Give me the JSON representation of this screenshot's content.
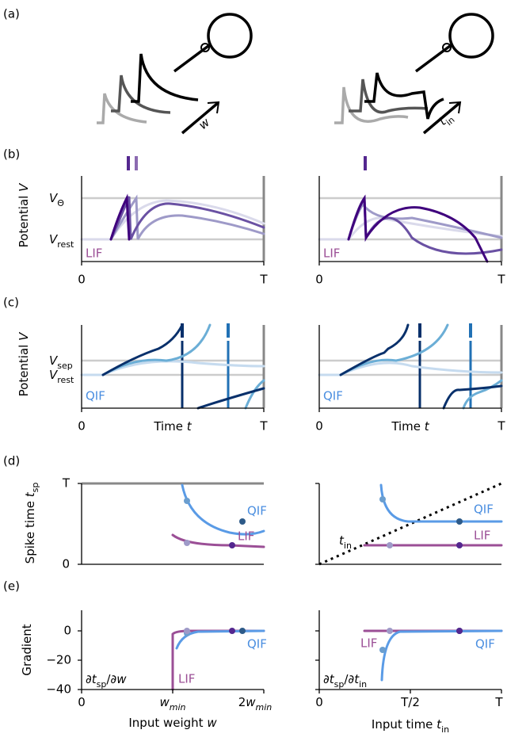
{
  "a": {
    "label": "(a)",
    "left_input": [
      {
        "text": "w",
        "style": "italic"
      }
    ],
    "right_input": [
      {
        "text": "t",
        "style": "italic"
      },
      {
        "text": "in",
        "style": "sub"
      }
    ]
  },
  "b": {
    "label": "(b)",
    "ylabel": [
      {
        "text": "Potential "
      },
      {
        "text": "V",
        "style": "italic"
      }
    ],
    "yticks": [
      [
        {
          "text": "V",
          "style": "italic"
        },
        {
          "text": "Θ",
          "style": "sub"
        }
      ],
      [
        {
          "text": "V",
          "style": "italic"
        },
        {
          "text": "rest",
          "style": "sub"
        }
      ]
    ],
    "model": "LIF",
    "xticks": [
      "0",
      "T"
    ]
  },
  "c": {
    "label": "(c)",
    "ylabel": [
      {
        "text": "Potential "
      },
      {
        "text": "V",
        "style": "italic"
      }
    ],
    "yticks": [
      [
        {
          "text": "V",
          "style": "italic"
        },
        {
          "text": "sep",
          "style": "sub"
        }
      ],
      [
        {
          "text": "V",
          "style": "italic"
        },
        {
          "text": "rest",
          "style": "sub"
        }
      ]
    ],
    "model": "QIF",
    "xticks": [
      "0",
      "T"
    ],
    "xlabel": [
      {
        "text": "Time "
      },
      {
        "text": "t",
        "style": "italic"
      }
    ]
  },
  "d": {
    "label": "(d)",
    "ylabel": [
      {
        "text": "Spike time "
      },
      {
        "text": "t",
        "style": "italic"
      },
      {
        "text": "sp",
        "style": "sub"
      }
    ],
    "yticks": [
      "T",
      "0"
    ],
    "curve_labels": [
      "QIF",
      "LIF"
    ],
    "diagonal_label": [
      {
        "text": "t",
        "style": "italic"
      },
      {
        "text": "in",
        "style": "sub"
      }
    ]
  },
  "e": {
    "label": "(e)",
    "ylabel": [
      {
        "text": "Gradient"
      }
    ],
    "yticks": [
      "0",
      "−20",
      "−40"
    ],
    "curve_labels": [
      "QIF",
      "LIF"
    ],
    "left": {
      "derivative": [
        {
          "text": "∂"
        },
        {
          "text": "t",
          "style": "italic"
        },
        {
          "text": "sp",
          "style": "sub"
        },
        {
          "text": "/∂"
        },
        {
          "text": "w",
          "style": "italic"
        }
      ],
      "xticks": [
        [
          {
            "text": "0"
          }
        ],
        [
          {
            "text": "w",
            "style": "italic"
          },
          {
            "text": "min",
            "style": "sub-italic"
          }
        ],
        [
          {
            "text": "2"
          },
          {
            "text": "w",
            "style": "italic"
          },
          {
            "text": "min",
            "style": "sub-italic"
          }
        ]
      ],
      "xlabel": [
        {
          "text": "Input weight "
        },
        {
          "text": "w",
          "style": "italic"
        }
      ]
    },
    "right": {
      "derivative": [
        {
          "text": "∂"
        },
        {
          "text": "t",
          "style": "italic"
        },
        {
          "text": "sp",
          "style": "sub"
        },
        {
          "text": "/∂"
        },
        {
          "text": "t",
          "style": "italic"
        },
        {
          "text": "in",
          "style": "sub"
        }
      ],
      "xticks": [
        [
          {
            "text": "0"
          }
        ],
        [
          {
            "text": "T/2"
          }
        ],
        [
          {
            "text": "T"
          }
        ]
      ],
      "xlabel": [
        {
          "text": "Input time "
        },
        {
          "text": "t",
          "style": "italic"
        },
        {
          "text": "in",
          "style": "sub"
        }
      ]
    }
  }
}
